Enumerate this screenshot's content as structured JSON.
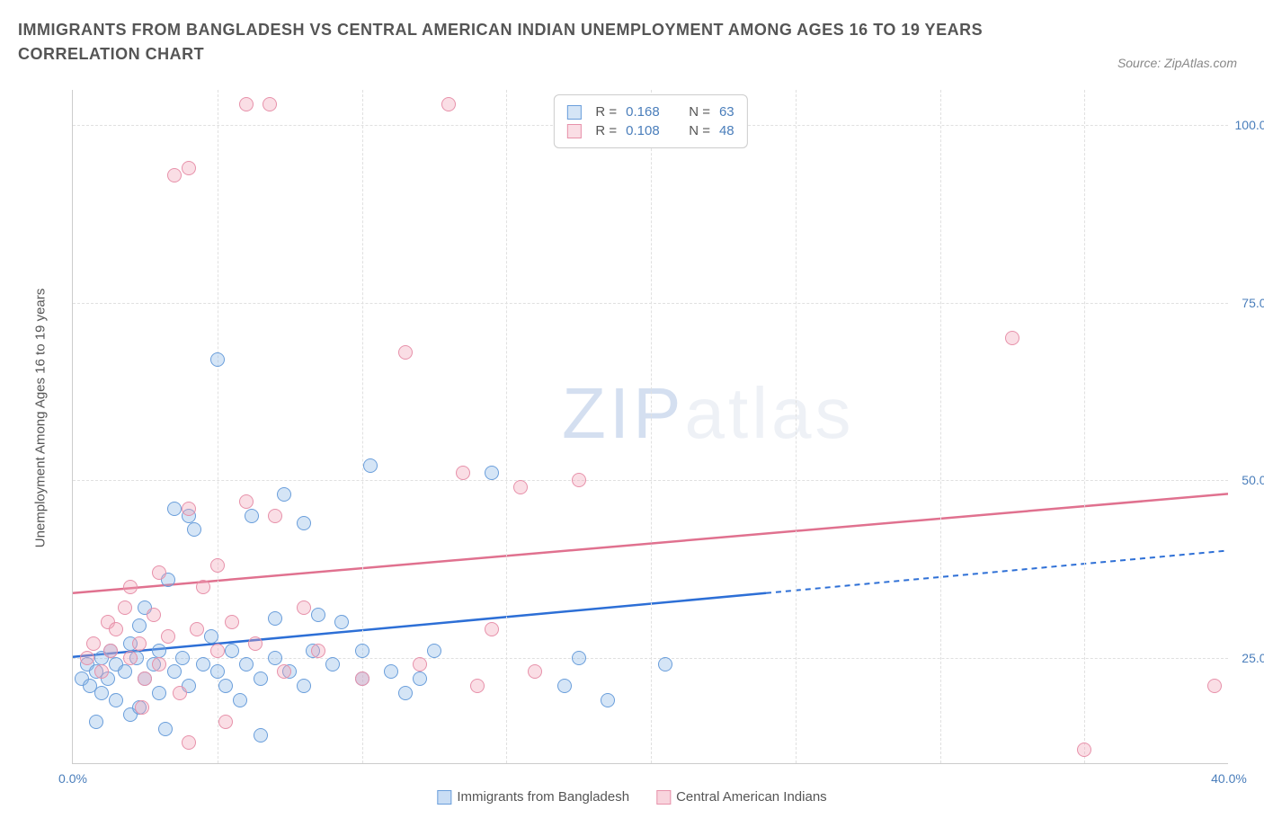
{
  "title": "IMMIGRANTS FROM BANGLADESH VS CENTRAL AMERICAN INDIAN UNEMPLOYMENT AMONG AGES 16 TO 19 YEARS CORRELATION CHART",
  "source": "Source: ZipAtlas.com",
  "watermark": {
    "zip": "ZIP",
    "atlas": "atlas"
  },
  "chart": {
    "type": "scatter",
    "y_axis_title": "Unemployment Among Ages 16 to 19 years",
    "xlim": [
      0,
      40
    ],
    "ylim": [
      10,
      105
    ],
    "x_ticks": [
      {
        "val": 0,
        "label": "0.0%"
      },
      {
        "val": 5,
        "label": ""
      },
      {
        "val": 10,
        "label": ""
      },
      {
        "val": 15,
        "label": ""
      },
      {
        "val": 20,
        "label": ""
      },
      {
        "val": 25,
        "label": ""
      },
      {
        "val": 30,
        "label": ""
      },
      {
        "val": 35,
        "label": ""
      },
      {
        "val": 40,
        "label": "40.0%"
      }
    ],
    "y_ticks": [
      {
        "val": 25,
        "label": "25.0%"
      },
      {
        "val": 50,
        "label": "50.0%"
      },
      {
        "val": 75,
        "label": "75.0%"
      },
      {
        "val": 100,
        "label": "100.0%"
      }
    ],
    "grid_color": "#e0e0e0",
    "background_color": "#ffffff",
    "axis_label_color": "#4a7ebb",
    "marker_radius": 8,
    "series": [
      {
        "name": "Immigrants from Bangladesh",
        "fill_color": "rgba(135, 180, 230, 0.35)",
        "stroke_color": "#6a9edb",
        "line_color": "#2d6fd6",
        "R": "0.168",
        "N": "63",
        "trend": {
          "x1": 0,
          "y1": 25,
          "x2": 24,
          "y2": 34,
          "x2_dash": 40,
          "y2_dash": 40
        },
        "points": [
          [
            0.3,
            22
          ],
          [
            0.5,
            24
          ],
          [
            0.6,
            21
          ],
          [
            0.8,
            23
          ],
          [
            1.0,
            25
          ],
          [
            1.0,
            20
          ],
          [
            1.2,
            22
          ],
          [
            1.3,
            26
          ],
          [
            1.5,
            24
          ],
          [
            1.5,
            19
          ],
          [
            1.8,
            23
          ],
          [
            2.0,
            27
          ],
          [
            2.0,
            17
          ],
          [
            2.2,
            25
          ],
          [
            2.3,
            29.5
          ],
          [
            2.5,
            22
          ],
          [
            2.5,
            32
          ],
          [
            2.8,
            24
          ],
          [
            3.0,
            26
          ],
          [
            3.0,
            20
          ],
          [
            3.2,
            15
          ],
          [
            3.3,
            36
          ],
          [
            3.5,
            46
          ],
          [
            3.5,
            23
          ],
          [
            3.8,
            25
          ],
          [
            4.0,
            45
          ],
          [
            4.0,
            21
          ],
          [
            4.2,
            43
          ],
          [
            4.5,
            24
          ],
          [
            4.8,
            28
          ],
          [
            5.0,
            23
          ],
          [
            5.0,
            67
          ],
          [
            5.3,
            21
          ],
          [
            5.5,
            26
          ],
          [
            5.8,
            19
          ],
          [
            6.0,
            24
          ],
          [
            6.2,
            45
          ],
          [
            6.5,
            22
          ],
          [
            6.5,
            14
          ],
          [
            7.0,
            25
          ],
          [
            7.0,
            30.5
          ],
          [
            7.3,
            48
          ],
          [
            7.5,
            23
          ],
          [
            8.0,
            21
          ],
          [
            8.0,
            44
          ],
          [
            8.3,
            26
          ],
          [
            8.5,
            31
          ],
          [
            9.0,
            24
          ],
          [
            9.3,
            30
          ],
          [
            10.0,
            22
          ],
          [
            10.0,
            26
          ],
          [
            10.3,
            52
          ],
          [
            11.0,
            23
          ],
          [
            11.5,
            20
          ],
          [
            12.0,
            22
          ],
          [
            12.5,
            26
          ],
          [
            14.5,
            51
          ],
          [
            17.0,
            21
          ],
          [
            17.5,
            25
          ],
          [
            18.5,
            19
          ],
          [
            20.5,
            24
          ],
          [
            0.8,
            16
          ],
          [
            2.3,
            18
          ]
        ]
      },
      {
        "name": "Central American Indians",
        "fill_color": "rgba(240, 160, 180, 0.35)",
        "stroke_color": "#e791aa",
        "line_color": "#e0718f",
        "R": "0.108",
        "N": "48",
        "trend": {
          "x1": 0,
          "y1": 34,
          "x2": 40,
          "y2": 48,
          "x2_dash": 40,
          "y2_dash": 48
        },
        "points": [
          [
            0.5,
            25
          ],
          [
            0.7,
            27
          ],
          [
            1.0,
            23
          ],
          [
            1.2,
            30
          ],
          [
            1.3,
            26
          ],
          [
            1.5,
            29
          ],
          [
            1.8,
            32
          ],
          [
            2.0,
            25
          ],
          [
            2.0,
            35
          ],
          [
            2.3,
            27
          ],
          [
            2.5,
            22
          ],
          [
            2.8,
            31
          ],
          [
            3.0,
            24
          ],
          [
            3.0,
            37
          ],
          [
            3.3,
            28
          ],
          [
            3.5,
            93
          ],
          [
            4.0,
            46
          ],
          [
            4.0,
            94
          ],
          [
            4.3,
            29
          ],
          [
            4.5,
            35
          ],
          [
            5.0,
            26
          ],
          [
            5.0,
            38
          ],
          [
            5.3,
            16
          ],
          [
            5.5,
            30
          ],
          [
            6.0,
            47
          ],
          [
            6.0,
            103
          ],
          [
            6.3,
            27
          ],
          [
            6.8,
            103
          ],
          [
            7.0,
            45
          ],
          [
            7.3,
            23
          ],
          [
            8.0,
            32
          ],
          [
            8.5,
            26
          ],
          [
            10.0,
            22
          ],
          [
            11.5,
            68
          ],
          [
            12.0,
            24
          ],
          [
            13.0,
            103
          ],
          [
            13.5,
            51
          ],
          [
            14.0,
            21
          ],
          [
            14.5,
            29
          ],
          [
            15.5,
            49
          ],
          [
            16.0,
            23
          ],
          [
            17.5,
            50
          ],
          [
            32.5,
            70
          ],
          [
            35.0,
            12
          ],
          [
            39.5,
            21
          ],
          [
            2.4,
            18
          ],
          [
            4.0,
            13
          ],
          [
            3.7,
            20
          ]
        ]
      }
    ],
    "legend": [
      {
        "label": "Immigrants from Bangladesh",
        "fill": "rgba(135,180,230,0.45)",
        "stroke": "#6a9edb"
      },
      {
        "label": "Central American Indians",
        "fill": "rgba(240,160,180,0.45)",
        "stroke": "#e791aa"
      }
    ],
    "stats_labels": {
      "R": "R =",
      "N": "N ="
    }
  }
}
